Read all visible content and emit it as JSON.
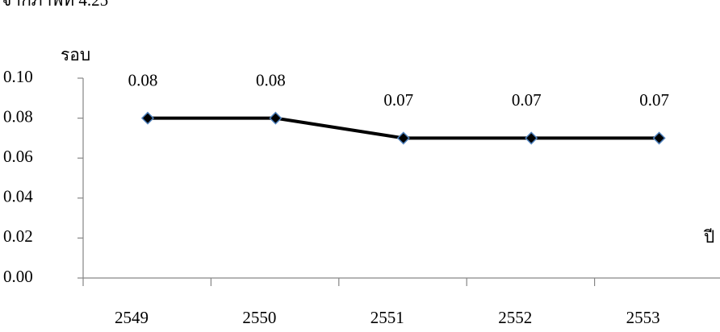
{
  "chart_data": {
    "type": "line",
    "caption": "จากภาพที่ 4.25",
    "y_label": "รอบ",
    "x_label": "ปี",
    "categories": [
      "2549",
      "2550",
      "2551",
      "2552",
      "2553"
    ],
    "values": [
      0.08,
      0.08,
      0.07,
      0.07,
      0.07
    ],
    "color": "#000000",
    "marker_edge_color": "#4f81bd",
    "ylim": [
      0,
      0.1
    ],
    "yticks": [
      {
        "value": 0,
        "label": "0.00"
      },
      {
        "value": 0.02,
        "label": "0.02"
      },
      {
        "value": 0.04,
        "label": "0.04"
      },
      {
        "value": 0.06,
        "label": "0.06"
      },
      {
        "value": 0.08,
        "label": "0.08"
      },
      {
        "value": 0.1,
        "label": "0.10"
      }
    ],
    "grid": false
  }
}
